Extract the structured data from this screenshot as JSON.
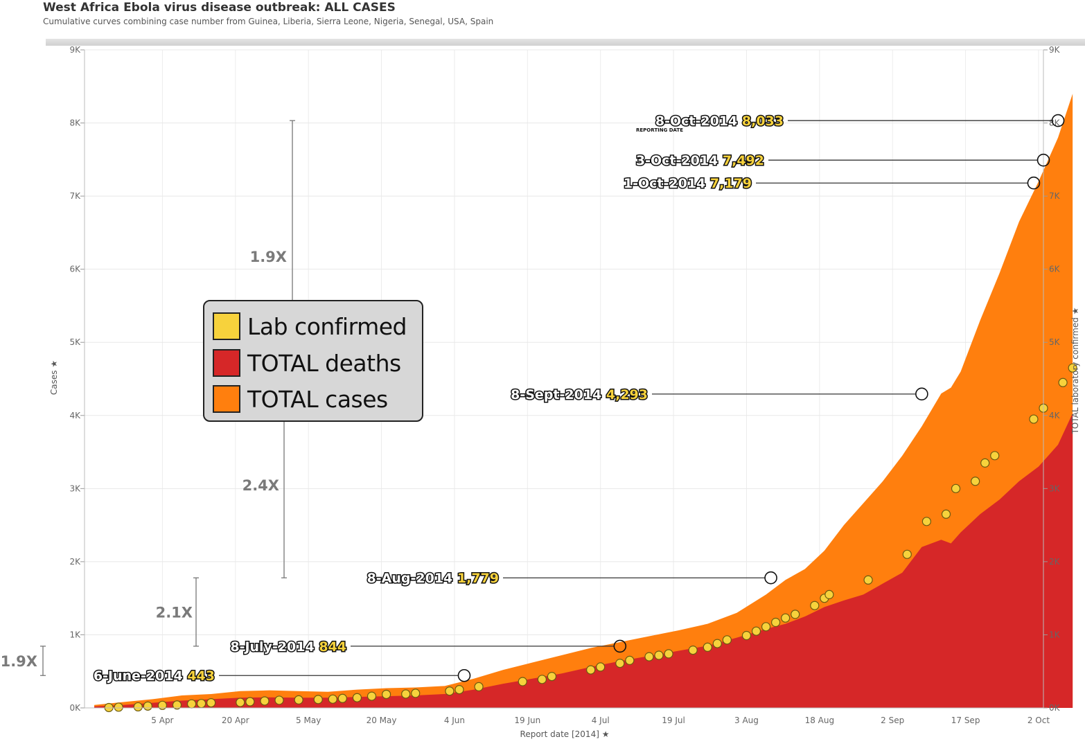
{
  "header": {
    "title": "West Africa Ebola virus disease outbreak: ALL CASES",
    "subtitle": "Cumulative curves combining case number from Guinea, Liberia, Sierra Leone, Nigeria, Senegal, USA, Spain"
  },
  "colors": {
    "total_cases": "#ff7f0e",
    "total_deaths": "#d62728",
    "lab_confirmed": "#f7d23c",
    "annotation_value": "#f7d23c",
    "ratio_text": "#7a7a7a"
  },
  "legend": {
    "items": [
      {
        "label": "Lab confirmed",
        "color": "#f7d23c"
      },
      {
        "label": "TOTAL deaths",
        "color": "#d62728"
      },
      {
        "label": "TOTAL cases",
        "color": "#ff7f0e"
      }
    ]
  },
  "chart_data": {
    "type": "area",
    "title": "West Africa Ebola virus disease outbreak: ALL CASES",
    "xlabel": "Report date [2014]",
    "ylabel": "Cases",
    "ylabel_right": "TOTAL laboratory confirmed",
    "xlim": [
      -2,
      195
    ],
    "ylim": [
      0,
      9000
    ],
    "y_ticks": [
      "0K",
      "1K",
      "2K",
      "3K",
      "4K",
      "5K",
      "6K",
      "7K",
      "8K",
      "9K"
    ],
    "y_tick_values": [
      0,
      1000,
      2000,
      3000,
      4000,
      5000,
      6000,
      7000,
      8000,
      9000
    ],
    "x_ticks": [
      {
        "label": "5 Apr",
        "day": 14
      },
      {
        "label": "20 Apr",
        "day": 29
      },
      {
        "label": "5 May",
        "day": 44
      },
      {
        "label": "20 May",
        "day": 59
      },
      {
        "label": "4 Jun",
        "day": 74
      },
      {
        "label": "19 Jun",
        "day": 89
      },
      {
        "label": "4 Jul",
        "day": 104
      },
      {
        "label": "19 Jul",
        "day": 119
      },
      {
        "label": "3 Aug",
        "day": 134
      },
      {
        "label": "18 Aug",
        "day": 149
      },
      {
        "label": "2 Sep",
        "day": 164
      },
      {
        "label": "17 Sep",
        "day": 179
      },
      {
        "label": "2 Oct",
        "day": 194
      }
    ],
    "x_unit_note": "day = days since 22 Mar 2014",
    "series": [
      {
        "name": "TOTAL cases",
        "type": "area",
        "x": [
          0,
          6,
          12,
          18,
          24,
          30,
          36,
          42,
          48,
          54,
          60,
          66,
          72,
          78,
          84,
          90,
          96,
          102,
          108,
          114,
          120,
          126,
          132,
          138,
          142,
          146,
          150,
          154,
          158,
          162,
          166,
          170,
          174,
          176,
          178,
          182,
          186,
          190,
          194,
          198,
          201
        ],
        "values": [
          40,
          80,
          120,
          170,
          190,
          230,
          240,
          230,
          220,
          250,
          270,
          280,
          300,
          400,
          520,
          620,
          720,
          820,
          900,
          980,
          1060,
          1150,
          1300,
          1550,
          1750,
          1900,
          2150,
          2500,
          2800,
          3100,
          3450,
          3850,
          4300,
          4380,
          4600,
          5300,
          5950,
          6650,
          7200,
          7800,
          8400
        ]
      },
      {
        "name": "TOTAL deaths",
        "type": "area",
        "x": [
          0,
          6,
          12,
          18,
          24,
          30,
          36,
          42,
          48,
          54,
          60,
          66,
          72,
          78,
          84,
          90,
          96,
          102,
          108,
          114,
          120,
          126,
          132,
          138,
          142,
          146,
          150,
          154,
          158,
          162,
          166,
          170,
          174,
          176,
          178,
          182,
          186,
          190,
          194,
          198,
          201
        ],
        "values": [
          20,
          40,
          70,
          100,
          120,
          140,
          145,
          140,
          140,
          150,
          160,
          170,
          190,
          250,
          330,
          400,
          470,
          560,
          640,
          710,
          780,
          850,
          960,
          1080,
          1150,
          1250,
          1380,
          1470,
          1550,
          1700,
          1850,
          2200,
          2300,
          2250,
          2400,
          2650,
          2850,
          3100,
          3300,
          3600,
          4030
        ]
      },
      {
        "name": "Lab confirmed",
        "type": "scatter",
        "x": [
          3,
          5,
          9,
          11,
          14,
          17,
          20,
          22,
          24,
          30,
          32,
          35,
          38,
          42,
          46,
          49,
          51,
          54,
          57,
          60,
          64,
          66,
          73,
          75,
          79,
          88,
          92,
          94,
          102,
          104,
          108,
          110,
          114,
          116,
          118,
          123,
          126,
          128,
          130,
          134,
          136,
          138,
          140,
          142,
          144,
          148,
          150,
          151,
          159,
          167,
          171,
          175,
          177,
          181,
          183,
          185,
          193,
          195,
          199,
          201
        ],
        "values": [
          5,
          10,
          15,
          25,
          35,
          40,
          55,
          60,
          70,
          75,
          85,
          95,
          105,
          110,
          115,
          120,
          130,
          140,
          160,
          185,
          190,
          200,
          230,
          250,
          290,
          360,
          390,
          430,
          520,
          560,
          610,
          650,
          700,
          720,
          740,
          790,
          830,
          880,
          930,
          990,
          1050,
          1110,
          1170,
          1230,
          1280,
          1400,
          1500,
          1550,
          1750,
          2100,
          2550,
          2650,
          3000,
          3100,
          3350,
          3450,
          3950,
          4100,
          4450,
          4650
        ]
      }
    ],
    "annotations": [
      {
        "date": "6-June-2014",
        "value": "443",
        "y": 443,
        "day": 76
      },
      {
        "date": "8-July-2014",
        "value": "844",
        "y": 844,
        "day": 108
      },
      {
        "date": "8-Aug-2014",
        "value": "1,779",
        "y": 1779,
        "day": 139
      },
      {
        "date": "8-Sept-2014",
        "value": "4,293",
        "y": 4293,
        "day": 170
      },
      {
        "date": "1-Oct-2014",
        "value": "7,179",
        "y": 7179,
        "day": 193
      },
      {
        "date": "3-Oct-2014",
        "value": "7,492",
        "y": 7492,
        "day": 195
      },
      {
        "date": "8-Oct-2014",
        "value": "8,033",
        "y": 8033,
        "day": 198,
        "note": "REPORTING DATE"
      }
    ],
    "ratios": [
      {
        "label": "1.9X",
        "from": 443,
        "to": 844
      },
      {
        "label": "2.1X",
        "from": 844,
        "to": 1779
      },
      {
        "label": "2.4X",
        "from": 1779,
        "to": 4293
      },
      {
        "label": "1.9X",
        "from": 4293,
        "to": 8033
      }
    ]
  }
}
